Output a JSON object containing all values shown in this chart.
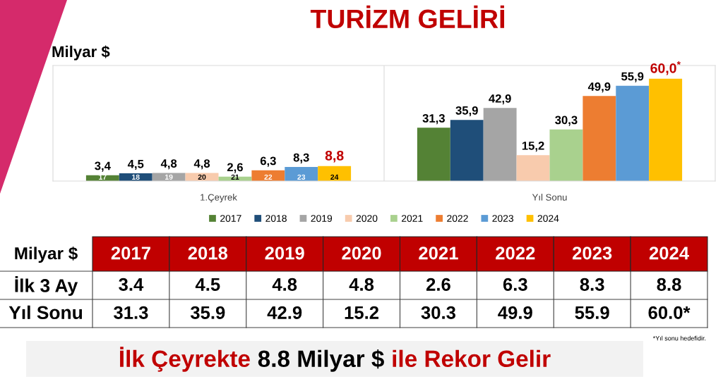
{
  "chart_data": {
    "type": "bar",
    "title": "TURİZM GELİRİ",
    "ylabel": "Milyar $",
    "categories": [
      "1.Çeyrek",
      "Yıl Sonu"
    ],
    "series": [
      {
        "name": "2017",
        "color": "#548235",
        "values": [
          3.4,
          31.3
        ],
        "value_labels": [
          "3,4",
          "31,3"
        ]
      },
      {
        "name": "2018",
        "color": "#1f4e79",
        "values": [
          4.5,
          35.9
        ],
        "value_labels": [
          "4,5",
          "35,9"
        ]
      },
      {
        "name": "2019",
        "color": "#a5a5a5",
        "values": [
          4.8,
          42.9
        ],
        "value_labels": [
          "4,8",
          "42,9"
        ]
      },
      {
        "name": "2020",
        "color": "#f8cbad",
        "values": [
          4.8,
          15.2
        ],
        "value_labels": [
          "4,8",
          "15,2"
        ]
      },
      {
        "name": "2021",
        "color": "#a9d18e",
        "values": [
          2.6,
          30.3
        ],
        "value_labels": [
          "2,6",
          "30,3"
        ]
      },
      {
        "name": "2022",
        "color": "#ed7d31",
        "values": [
          6.3,
          49.9
        ],
        "value_labels": [
          "6,3",
          "49,9"
        ]
      },
      {
        "name": "2023",
        "color": "#5b9bd5",
        "values": [
          8.3,
          55.9
        ],
        "value_labels": [
          "8,3",
          "55,9"
        ]
      },
      {
        "name": "2024",
        "color": "#ffc000",
        "values": [
          8.8,
          60.0
        ],
        "value_labels": [
          "8,8",
          "60,0$^{*}$"
        ]
      }
    ],
    "annotations": [
      "*Yıl sonu hedefidir.",
      "İlk Çeyrekte",
      "8.8 Milyar $",
      "ile Rekor Gelir",
      "İlk 3 Ay",
      "Yıl Sonu",
      "17",
      "18",
      "19",
      "20",
      "21",
      "22",
      "23",
      "24",
      "3.4",
      "4.5",
      "4.8",
      "4.8",
      "2.6",
      "6.3",
      "8.3",
      "8.8",
      "31.3",
      "35.9",
      "42.9",
      "15.2",
      "30.3",
      "49.9",
      "55.9",
      "60.0*"
    ],
    "data_labels": true,
    "legend": "bottom",
    "grid": "x",
    "tick_labels": "x"
  }
}
